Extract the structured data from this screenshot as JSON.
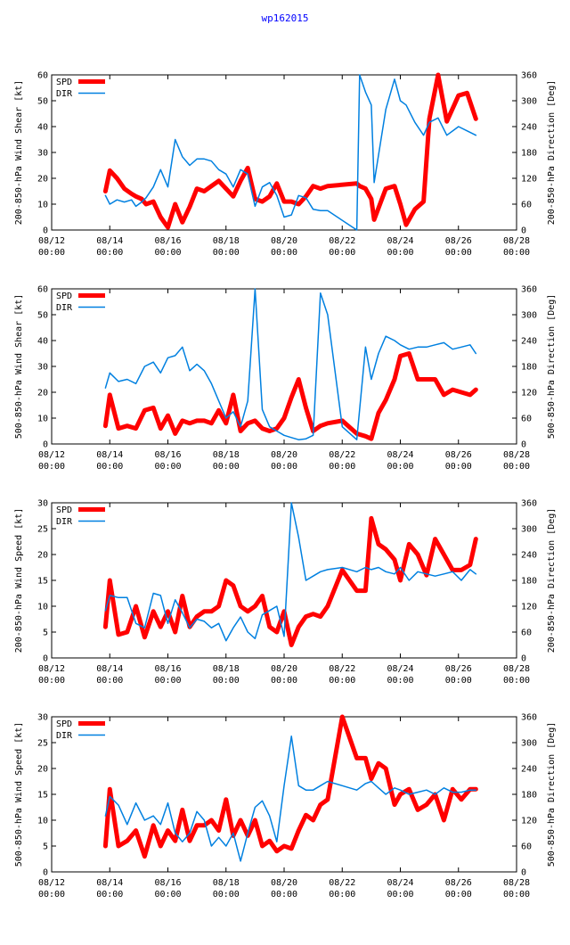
{
  "page": {
    "title": "wp162015"
  },
  "colors": {
    "spd": "#ff0000",
    "dir": "#0080e0",
    "axis": "#000000"
  },
  "chart_data": [
    {
      "type": "line",
      "title": "",
      "ylabel": "200-850-hPa Wind Shear [kt]",
      "y2label": "200-850-hPa Direction [Deg]",
      "xlabel": "",
      "xlim": [
        0,
        16
      ],
      "ylim": [
        0,
        60
      ],
      "y2lim": [
        0,
        360
      ],
      "xticks": [
        0,
        2,
        4,
        6,
        8,
        10,
        12,
        14,
        16
      ],
      "xtick_labels": [
        [
          "08/12",
          "00:00"
        ],
        [
          "08/14",
          "00:00"
        ],
        [
          "08/16",
          "00:00"
        ],
        [
          "08/18",
          "00:00"
        ],
        [
          "08/20",
          "00:00"
        ],
        [
          "08/22",
          "00:00"
        ],
        [
          "08/24",
          "00:00"
        ],
        [
          "08/26",
          "00:00"
        ],
        [
          "08/28",
          "00:00"
        ]
      ],
      "yticks": [
        0,
        10,
        20,
        30,
        40,
        50,
        60
      ],
      "y2ticks": [
        0,
        60,
        120,
        180,
        240,
        300,
        360
      ],
      "legend": [
        "SPD",
        "DIR"
      ],
      "legend_position": "top-left",
      "series": [
        {
          "name": "SPD",
          "axis": "left",
          "x": [
            1.85,
            2.0,
            2.25,
            2.5,
            2.75,
            2.9,
            3.1,
            3.25,
            3.5,
            3.75,
            4.0,
            4.25,
            4.5,
            4.75,
            5.0,
            5.25,
            5.5,
            5.75,
            6.0,
            6.25,
            6.5,
            6.75,
            7.0,
            7.25,
            7.5,
            7.75,
            8.0,
            8.25,
            8.5,
            8.75,
            9.0,
            9.25,
            9.5,
            10.5,
            10.6,
            10.8,
            11.0,
            11.1,
            11.5,
            11.8,
            12.0,
            12.2,
            12.5,
            12.8,
            13.0,
            13.3,
            13.6,
            14.0,
            14.3,
            14.6
          ],
          "y": [
            15,
            23,
            20,
            16,
            14,
            13,
            12,
            10,
            11,
            5,
            1,
            10,
            3,
            9,
            16,
            15,
            17,
            19,
            16,
            13,
            19,
            24,
            12,
            11,
            13,
            18,
            11,
            11,
            10,
            13,
            17,
            16,
            17,
            18,
            17,
            16,
            12,
            4,
            16,
            17,
            10,
            2,
            8,
            11,
            43,
            60,
            42,
            52,
            53,
            43
          ]
        },
        {
          "name": "DIR",
          "axis": "right",
          "x": [
            1.85,
            2.0,
            2.25,
            2.5,
            2.75,
            2.9,
            3.1,
            3.25,
            3.5,
            3.75,
            4.0,
            4.25,
            4.5,
            4.75,
            5.0,
            5.25,
            5.5,
            5.75,
            6.0,
            6.25,
            6.5,
            6.75,
            7.0,
            7.25,
            7.5,
            7.75,
            8.0,
            8.25,
            8.5,
            8.75,
            9.0,
            9.25,
            9.5,
            10.5,
            10.6,
            10.8,
            11.0,
            11.1,
            11.5,
            11.8,
            12.0,
            12.2,
            12.5,
            12.8,
            13.0,
            13.3,
            13.6,
            14.0,
            14.3,
            14.6
          ],
          "y": [
            80,
            60,
            70,
            65,
            70,
            55,
            65,
            75,
            100,
            140,
            100,
            210,
            170,
            150,
            165,
            165,
            160,
            140,
            130,
            100,
            140,
            130,
            55,
            100,
            110,
            80,
            30,
            35,
            80,
            75,
            48,
            45,
            45,
            0,
            360,
            320,
            290,
            110,
            280,
            350,
            300,
            290,
            250,
            220,
            250,
            260,
            220,
            240,
            230,
            220
          ]
        }
      ]
    },
    {
      "type": "line",
      "title": "",
      "ylabel": "500-850-hPa Wind Shear [kt]",
      "y2label": "500-850-hPa Direction [Deg]",
      "xlabel": "",
      "xlim": [
        0,
        16
      ],
      "ylim": [
        0,
        60
      ],
      "y2lim": [
        0,
        360
      ],
      "xticks": [
        0,
        2,
        4,
        6,
        8,
        10,
        12,
        14,
        16
      ],
      "xtick_labels": [
        [
          "08/12",
          "00:00"
        ],
        [
          "08/14",
          "00:00"
        ],
        [
          "08/16",
          "00:00"
        ],
        [
          "08/18",
          "00:00"
        ],
        [
          "08/20",
          "00:00"
        ],
        [
          "08/22",
          "00:00"
        ],
        [
          "08/24",
          "00:00"
        ],
        [
          "08/26",
          "00:00"
        ],
        [
          "08/28",
          "00:00"
        ]
      ],
      "yticks": [
        0,
        10,
        20,
        30,
        40,
        50,
        60
      ],
      "y2ticks": [
        0,
        60,
        120,
        180,
        240,
        300,
        360
      ],
      "legend": [
        "SPD",
        "DIR"
      ],
      "legend_position": "top-left",
      "series": [
        {
          "name": "SPD",
          "axis": "left",
          "x": [
            1.85,
            2.0,
            2.3,
            2.6,
            2.9,
            3.2,
            3.5,
            3.75,
            4.0,
            4.25,
            4.5,
            4.75,
            5.0,
            5.25,
            5.5,
            5.75,
            6.0,
            6.25,
            6.5,
            6.75,
            7.0,
            7.25,
            7.5,
            7.75,
            8.0,
            8.25,
            8.5,
            8.75,
            9.0,
            9.25,
            9.5,
            10.0,
            10.5,
            10.8,
            11.0,
            11.25,
            11.5,
            11.8,
            12.0,
            12.3,
            12.6,
            12.9,
            13.2,
            13.5,
            13.8,
            14.1,
            14.4,
            14.6
          ],
          "y": [
            7,
            19,
            6,
            7,
            6,
            13,
            14,
            6,
            11,
            4,
            9,
            8,
            9,
            9,
            8,
            13,
            8,
            19,
            5,
            8,
            9,
            6,
            5,
            6,
            10,
            18,
            25,
            14,
            5,
            7,
            8,
            9,
            4,
            3,
            2,
            12,
            17,
            25,
            34,
            35,
            25,
            25,
            25,
            19,
            21,
            20,
            19,
            21
          ]
        },
        {
          "name": "DIR",
          "axis": "right",
          "x": [
            1.85,
            2.0,
            2.3,
            2.6,
            2.9,
            3.2,
            3.5,
            3.75,
            4.0,
            4.25,
            4.5,
            4.75,
            5.0,
            5.25,
            5.5,
            5.75,
            6.0,
            6.25,
            6.5,
            6.75,
            7.0,
            7.25,
            7.5,
            7.75,
            8.0,
            8.25,
            8.5,
            8.75,
            9.0,
            9.25,
            9.5,
            10.0,
            10.5,
            10.8,
            11.0,
            11.25,
            11.5,
            11.8,
            12.0,
            12.3,
            12.6,
            12.9,
            13.2,
            13.5,
            13.8,
            14.1,
            14.4,
            14.6
          ],
          "y": [
            130,
            165,
            145,
            150,
            140,
            180,
            190,
            165,
            200,
            205,
            225,
            170,
            185,
            170,
            140,
            100,
            60,
            75,
            40,
            100,
            360,
            80,
            40,
            30,
            20,
            15,
            10,
            12,
            20,
            350,
            300,
            40,
            10,
            225,
            150,
            210,
            250,
            240,
            230,
            220,
            225,
            225,
            230,
            235,
            220,
            225,
            230,
            210
          ]
        }
      ]
    },
    {
      "type": "line",
      "title": "",
      "ylabel": "200-850-hPa Wind Speed [kt]",
      "y2label": "200-850-hPa Direction [Deg]",
      "xlabel": "",
      "xlim": [
        0,
        16
      ],
      "ylim": [
        0,
        30
      ],
      "y2lim": [
        0,
        360
      ],
      "xticks": [
        0,
        2,
        4,
        6,
        8,
        10,
        12,
        14,
        16
      ],
      "xtick_labels": [
        [
          "08/12",
          "00:00"
        ],
        [
          "08/14",
          "00:00"
        ],
        [
          "08/16",
          "00:00"
        ],
        [
          "08/18",
          "00:00"
        ],
        [
          "08/20",
          "00:00"
        ],
        [
          "08/22",
          "00:00"
        ],
        [
          "08/24",
          "00:00"
        ],
        [
          "08/26",
          "00:00"
        ],
        [
          "08/28",
          "00:00"
        ]
      ],
      "yticks": [
        0,
        5,
        10,
        15,
        20,
        25,
        30
      ],
      "y2ticks": [
        0,
        60,
        120,
        180,
        240,
        300,
        360
      ],
      "legend": [
        "SPD",
        "DIR"
      ],
      "legend_position": "top-left",
      "series": [
        {
          "name": "SPD",
          "axis": "left",
          "x": [
            1.85,
            2.0,
            2.3,
            2.6,
            2.9,
            3.2,
            3.5,
            3.75,
            4.0,
            4.25,
            4.5,
            4.75,
            5.0,
            5.25,
            5.5,
            5.75,
            6.0,
            6.25,
            6.5,
            6.75,
            7.0,
            7.25,
            7.5,
            7.75,
            8.0,
            8.25,
            8.5,
            8.75,
            9.0,
            9.25,
            9.5,
            10.0,
            10.5,
            10.8,
            11.0,
            11.25,
            11.5,
            11.8,
            12.0,
            12.3,
            12.6,
            12.9,
            13.2,
            13.5,
            13.8,
            14.1,
            14.4,
            14.6
          ],
          "y": [
            6,
            15,
            4.5,
            5,
            10,
            4,
            9,
            6,
            9,
            5,
            12,
            6,
            8,
            9,
            9,
            10,
            15,
            14,
            10,
            9,
            10,
            12,
            6,
            5,
            9,
            2.5,
            6,
            8,
            8.5,
            8,
            10,
            17,
            13,
            13,
            27,
            22,
            21,
            19,
            15,
            22,
            20,
            16,
            23,
            20,
            17,
            17,
            18,
            23
          ]
        },
        {
          "name": "DIR",
          "axis": "right",
          "x": [
            1.85,
            2.0,
            2.3,
            2.6,
            2.9,
            3.2,
            3.5,
            3.75,
            4.0,
            4.25,
            4.5,
            4.75,
            5.0,
            5.25,
            5.5,
            5.75,
            6.0,
            6.25,
            6.5,
            6.75,
            7.0,
            7.25,
            7.5,
            7.75,
            8.0,
            8.25,
            8.5,
            8.75,
            9.0,
            9.25,
            9.5,
            10.0,
            10.5,
            10.8,
            11.0,
            11.25,
            11.5,
            11.8,
            12.0,
            12.3,
            12.6,
            12.9,
            13.2,
            13.5,
            13.8,
            14.1,
            14.4,
            14.6
          ],
          "y": [
            110,
            145,
            140,
            140,
            80,
            70,
            150,
            145,
            80,
            135,
            105,
            70,
            90,
            85,
            70,
            80,
            40,
            70,
            95,
            60,
            45,
            100,
            110,
            120,
            50,
            360,
            280,
            180,
            190,
            200,
            205,
            210,
            200,
            210,
            205,
            210,
            200,
            195,
            210,
            180,
            200,
            195,
            190,
            195,
            200,
            180,
            205,
            195
          ]
        }
      ]
    },
    {
      "type": "line",
      "title": "",
      "ylabel": "500-850-hPa Wind Speed [kt]",
      "y2label": "500-850-hPa Direction [Deg]",
      "xlabel": "",
      "xlim": [
        0,
        16
      ],
      "ylim": [
        0,
        30
      ],
      "y2lim": [
        0,
        360
      ],
      "xticks": [
        0,
        2,
        4,
        6,
        8,
        10,
        12,
        14,
        16
      ],
      "xtick_labels": [
        [
          "08/12",
          "00:00"
        ],
        [
          "08/14",
          "00:00"
        ],
        [
          "08/16",
          "00:00"
        ],
        [
          "08/18",
          "00:00"
        ],
        [
          "08/20",
          "00:00"
        ],
        [
          "08/22",
          "00:00"
        ],
        [
          "08/24",
          "00:00"
        ],
        [
          "08/26",
          "00:00"
        ],
        [
          "08/28",
          "00:00"
        ]
      ],
      "yticks": [
        0,
        5,
        10,
        15,
        20,
        25,
        30
      ],
      "y2ticks": [
        0,
        60,
        120,
        180,
        240,
        300,
        360
      ],
      "legend": [
        "SPD",
        "DIR"
      ],
      "legend_position": "top-left",
      "series": [
        {
          "name": "SPD",
          "axis": "left",
          "x": [
            1.85,
            2.0,
            2.3,
            2.6,
            2.9,
            3.2,
            3.5,
            3.75,
            4.0,
            4.25,
            4.5,
            4.75,
            5.0,
            5.25,
            5.5,
            5.75,
            6.0,
            6.25,
            6.5,
            6.75,
            7.0,
            7.25,
            7.5,
            7.75,
            8.0,
            8.25,
            8.5,
            8.75,
            9.0,
            9.25,
            9.5,
            10.0,
            10.5,
            10.8,
            11.0,
            11.25,
            11.5,
            11.8,
            12.0,
            12.3,
            12.6,
            12.9,
            13.2,
            13.5,
            13.8,
            14.1,
            14.4,
            14.6
          ],
          "y": [
            5,
            16,
            5,
            6,
            8,
            3,
            9,
            5,
            8,
            6,
            12,
            6,
            9,
            9,
            10,
            8,
            14,
            7,
            10,
            7,
            10,
            5,
            6,
            4,
            5,
            4.5,
            8,
            11,
            10,
            13,
            14,
            30,
            22,
            22,
            18,
            21,
            20,
            13,
            15,
            16,
            12,
            13,
            15,
            10,
            16,
            14,
            16,
            16
          ]
        },
        {
          "name": "DIR",
          "axis": "right",
          "x": [
            1.85,
            2.0,
            2.3,
            2.6,
            2.9,
            3.2,
            3.5,
            3.75,
            4.0,
            4.25,
            4.5,
            4.75,
            5.0,
            5.25,
            5.5,
            5.75,
            6.0,
            6.25,
            6.5,
            6.75,
            7.0,
            7.25,
            7.5,
            7.75,
            8.0,
            8.25,
            8.5,
            8.75,
            9.0,
            9.25,
            9.5,
            10.0,
            10.5,
            10.8,
            11.0,
            11.25,
            11.5,
            11.8,
            12.0,
            12.3,
            12.6,
            12.9,
            13.2,
            13.5,
            13.8,
            14.1,
            14.4,
            14.6
          ],
          "y": [
            130,
            175,
            155,
            110,
            160,
            120,
            130,
            110,
            160,
            90,
            70,
            90,
            140,
            120,
            60,
            80,
            60,
            90,
            25,
            90,
            150,
            165,
            130,
            70,
            200,
            315,
            200,
            190,
            190,
            200,
            210,
            200,
            190,
            205,
            210,
            195,
            180,
            195,
            190,
            180,
            185,
            190,
            180,
            195,
            185,
            185,
            190,
            190
          ]
        }
      ]
    }
  ]
}
